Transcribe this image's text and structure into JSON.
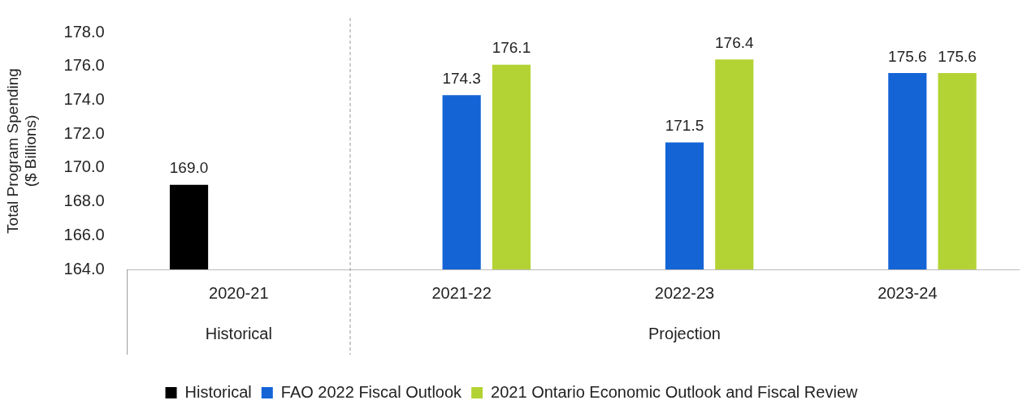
{
  "chart_data": {
    "type": "bar",
    "ylabel": "Total Program Spending ($ Billions)",
    "categories": [
      "2020-21",
      "2021-22",
      "2022-23",
      "2023-24"
    ],
    "series": [
      {
        "name": "Historical",
        "color": "#000000",
        "values": [
          169.0,
          null,
          null,
          null
        ],
        "value_labels": [
          "169.0",
          null,
          null,
          null
        ]
      },
      {
        "name": "FAO 2022 Fiscal Outlook",
        "color": "#1464d6",
        "values": [
          null,
          174.3,
          171.5,
          175.6
        ],
        "value_labels": [
          null,
          "174.3",
          "171.5",
          "175.6"
        ]
      },
      {
        "name": "2021 Ontario Economic Outlook and Fiscal Review",
        "color": "#b3d334",
        "values": [
          null,
          176.1,
          176.4,
          175.6
        ],
        "value_labels": [
          null,
          "176.1",
          "176.4",
          "175.6"
        ]
      }
    ],
    "ylim": [
      164,
      178
    ],
    "yticks": [
      {
        "value": 164,
        "label": "164.0"
      },
      {
        "value": 166,
        "label": "166.0"
      },
      {
        "value": 168,
        "label": "168.0"
      },
      {
        "value": 170,
        "label": "170.0"
      },
      {
        "value": 172,
        "label": "172.0"
      },
      {
        "value": 174,
        "label": "174.0"
      },
      {
        "value": 176,
        "label": "176.0"
      },
      {
        "value": 178,
        "label": "178.0"
      }
    ],
    "annotations": [
      "Historical",
      "Projection"
    ],
    "grid": false,
    "legend": "bottom"
  }
}
